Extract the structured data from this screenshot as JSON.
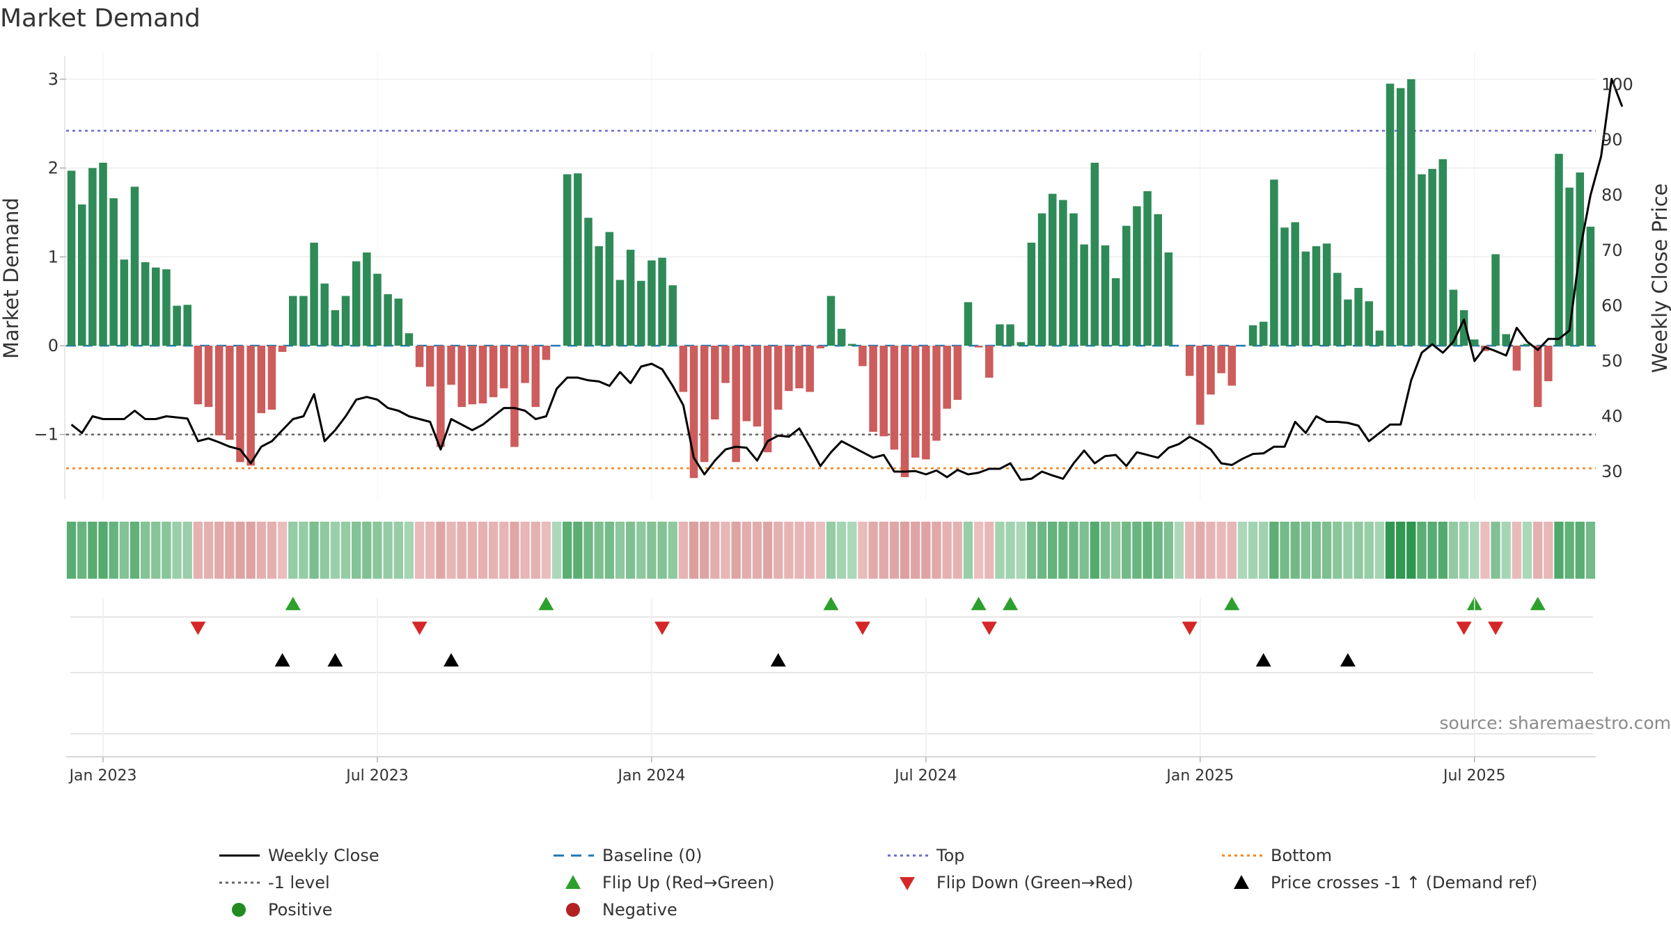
{
  "chart_data": {
    "type": "bar",
    "title": "Market Demand",
    "ylabel": "Market Demand",
    "y2label": "Weekly Close Price",
    "ylim": [
      -1.75,
      3.1
    ],
    "y2lim": [
      27.5,
      102
    ],
    "yticks": [
      {
        "value": -1,
        "label": "−1"
      },
      {
        "value": 0,
        "label": "0"
      },
      {
        "value": 1,
        "label": "1"
      },
      {
        "value": 2,
        "label": "2"
      },
      {
        "value": 3,
        "label": "3"
      }
    ],
    "y2ticks": [
      30,
      40,
      50,
      60,
      70,
      80,
      90,
      100
    ],
    "date_ticks": [
      {
        "week": 3,
        "label": "Jan 2023"
      },
      {
        "week": 29,
        "label": "Jul 2023"
      },
      {
        "week": 55,
        "label": "Jan 2024"
      },
      {
        "week": 81,
        "label": "Jul 2024"
      },
      {
        "week": 107,
        "label": "Jan 2025"
      },
      {
        "week": 133,
        "label": "Jul 2025"
      }
    ],
    "reference_lines": {
      "top": 2.42,
      "bottom": -1.38,
      "minus_one": -1,
      "baseline": 0
    },
    "demand": [
      1.97,
      1.59,
      2.0,
      2.06,
      1.66,
      0.97,
      1.79,
      0.94,
      0.88,
      0.86,
      0.45,
      0.46,
      -0.66,
      -0.69,
      -1.01,
      -1.06,
      -1.31,
      -1.35,
      -0.76,
      -0.72,
      -0.07,
      0.56,
      0.56,
      1.16,
      0.7,
      0.4,
      0.56,
      0.95,
      1.05,
      0.81,
      0.58,
      0.53,
      0.14,
      -0.24,
      -0.46,
      -1.14,
      -0.44,
      -0.69,
      -0.66,
      -0.65,
      -0.58,
      -0.48,
      -1.14,
      -0.42,
      -0.69,
      -0.16,
      0.0,
      1.93,
      1.94,
      1.44,
      1.12,
      1.28,
      0.74,
      1.08,
      0.73,
      0.96,
      0.99,
      0.68,
      -0.52,
      -1.49,
      -1.31,
      -0.83,
      -0.42,
      -1.31,
      -0.85,
      -0.91,
      -1.2,
      -0.72,
      -0.51,
      -0.48,
      -0.52,
      -0.03,
      0.56,
      0.19,
      0.02,
      -0.23,
      -0.97,
      -1.02,
      -1.17,
      -1.48,
      -1.26,
      -1.28,
      -1.07,
      -0.71,
      -0.61,
      0.49,
      -0.02,
      -0.36,
      0.24,
      0.24,
      0.04,
      1.16,
      1.49,
      1.71,
      1.64,
      1.49,
      1.14,
      2.06,
      1.13,
      0.76,
      1.35,
      1.57,
      1.74,
      1.48,
      1.05,
      0.0,
      -0.34,
      -0.89,
      -0.55,
      -0.31,
      -0.45,
      0.0,
      0.23,
      0.27,
      1.87,
      1.33,
      1.39,
      1.06,
      1.12,
      1.15,
      0.82,
      0.52,
      0.65,
      0.5,
      0.17,
      2.95,
      2.9,
      3.0,
      1.93,
      1.99,
      2.1,
      0.63,
      0.4,
      0.07,
      -0.06,
      1.03,
      0.13,
      -0.28,
      0.02,
      -0.69,
      -0.4,
      2.16,
      1.78,
      1.95,
      1.34
    ],
    "weekly_close": [
      38.5,
      37.0,
      40.0,
      39.5,
      39.5,
      39.5,
      41.0,
      39.5,
      39.5,
      40.0,
      39.8,
      39.6,
      35.5,
      36.0,
      35.3,
      34.5,
      34.0,
      31.5,
      34.5,
      35.5,
      37.5,
      39.5,
      40.0,
      44.0,
      35.5,
      37.5,
      40.0,
      43.0,
      43.5,
      43.0,
      41.5,
      41.0,
      40.0,
      39.5,
      39.0,
      34.0,
      39.5,
      38.5,
      37.5,
      38.5,
      40.0,
      41.5,
      41.5,
      41.0,
      39.5,
      40.0,
      45.0,
      47.0,
      47.0,
      46.5,
      46.3,
      45.5,
      48.0,
      46.0,
      49.0,
      49.5,
      48.5,
      45.5,
      42.0,
      32.5,
      29.5,
      32.0,
      34.0,
      34.5,
      34.3,
      32.0,
      35.5,
      36.5,
      36.3,
      37.8,
      34.5,
      31.0,
      33.5,
      35.5,
      34.5,
      33.5,
      32.5,
      33.0,
      30.0,
      30.0,
      30.1,
      29.5,
      30.2,
      29.0,
      30.3,
      29.5,
      29.8,
      30.5,
      30.5,
      31.5,
      28.5,
      28.7,
      30.0,
      29.3,
      28.7,
      31.5,
      33.8,
      31.5,
      32.8,
      33.0,
      31.0,
      33.5,
      33.0,
      32.5,
      34.3,
      35.0,
      36.3,
      35.3,
      34.0,
      31.5,
      31.2,
      32.3,
      33.2,
      33.3,
      34.5,
      34.5,
      39.0,
      37.0,
      40.0,
      39.0,
      39.0,
      38.8,
      38.3,
      35.5,
      37.0,
      38.5,
      38.5,
      46.5,
      51.5,
      53.0,
      51.5,
      53.5,
      57.5,
      50.0,
      52.5,
      51.8,
      51.0,
      56.0,
      53.5,
      52.0,
      54.0,
      54.0,
      55.5,
      70.0,
      80.0,
      87.0,
      101.0,
      96.0
    ],
    "signal_rows": [
      {
        "type": "flip_up",
        "weeks": [
          21,
          45,
          72,
          86,
          89,
          110,
          133,
          139
        ]
      },
      {
        "type": "flip_down",
        "weeks": [
          12,
          33,
          56,
          75,
          87,
          106,
          132,
          135
        ]
      },
      {
        "type": "price_cross",
        "weeks": [
          20,
          25,
          36,
          67,
          113,
          121
        ]
      }
    ],
    "colors": {
      "positive_bar": "#2e8b57",
      "negative_bar": "#cd5c5c",
      "weekly_close": "#000000",
      "baseline": "#1f77b4",
      "top": "#6a6ad1",
      "bottom": "#f58518",
      "minus_one": "#666666",
      "flip_up": "#2ca02c",
      "flip_down": "#d62728",
      "price_cross": "#000000",
      "positive_dot": "#228b22",
      "negative_dot": "#b22222",
      "grid": "#e6e6e6"
    },
    "source": "source: sharemaestro.com"
  },
  "legend": [
    {
      "label": "Weekly Close",
      "symbol": "solid-line",
      "color": "#000000"
    },
    {
      "label": "Baseline (0)",
      "symbol": "dash-line",
      "color": "#1f77b4"
    },
    {
      "label": "Top",
      "symbol": "dot-line",
      "color": "#6a6ad1"
    },
    {
      "label": "Bottom",
      "symbol": "dot-line",
      "color": "#f58518"
    },
    {
      "label": "-1 level",
      "symbol": "dot-line",
      "color": "#666666"
    },
    {
      "label": "Flip Up (Red→Green)",
      "symbol": "triangle-up",
      "color": "#2ca02c"
    },
    {
      "label": "Flip Down (Green→Red)",
      "symbol": "triangle-down",
      "color": "#d62728"
    },
    {
      "label": "Price crosses -1 ↑ (Demand ref)",
      "symbol": "triangle-up",
      "color": "#000000"
    },
    {
      "label": "Positive",
      "symbol": "dot",
      "color": "#228b22"
    },
    {
      "label": "Negative",
      "symbol": "dot",
      "color": "#b22222"
    }
  ]
}
